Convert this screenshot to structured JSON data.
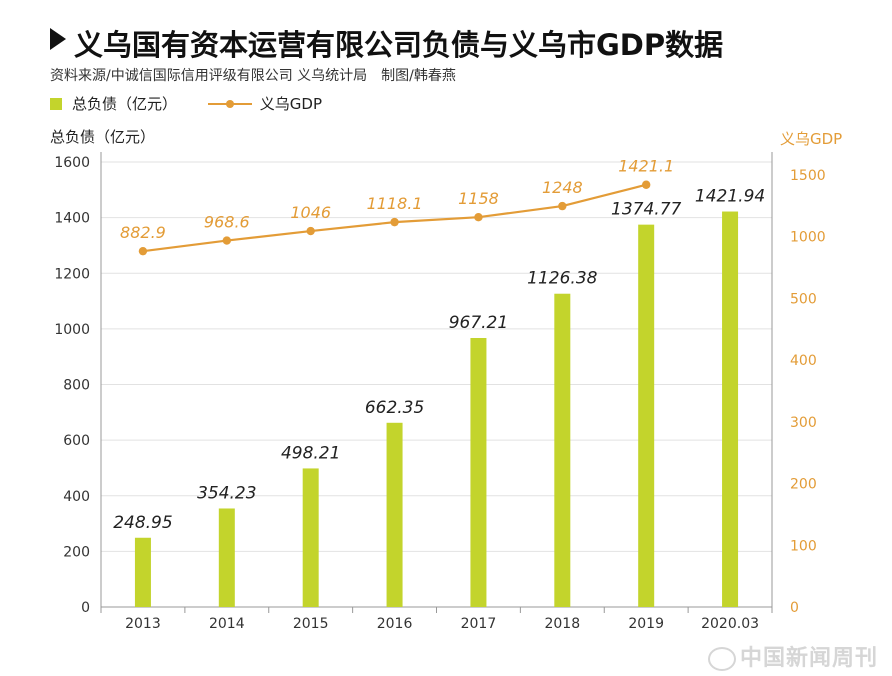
{
  "header": {
    "title": "义乌国有资本运营有限公司负债与义乌市GDP数据",
    "source": "资料来源/中诚信国际信用评级有限公司 义乌统计局　制图/韩春燕"
  },
  "legend": {
    "bar_label": "总负债（亿元）",
    "line_label": "义乌GDP"
  },
  "watermark": "中国新闻周刊",
  "colors": {
    "bar": "#c3d42c",
    "line": "#e39c37",
    "axis": "#999999",
    "grid": "#e2e2e2"
  },
  "chart_data": {
    "type": "bar+line",
    "title": "义乌国有资本运营有限公司负债与义乌市GDP数据",
    "categories": [
      "2013",
      "2014",
      "2015",
      "2016",
      "2017",
      "2018",
      "2019",
      "2020.03"
    ],
    "y_left": {
      "label": "总负债（亿元）",
      "range": [
        0,
        1600
      ],
      "ticks": [
        0,
        200,
        400,
        600,
        800,
        1000,
        1200,
        1400,
        1600
      ]
    },
    "y_right": {
      "label": "义乌GDP",
      "range": [
        0,
        1500
      ],
      "ticks": [
        0,
        100,
        200,
        300,
        400,
        500,
        1000,
        1500
      ]
    },
    "series": [
      {
        "name": "总负债（亿元）",
        "type": "bar",
        "axis": "left",
        "values": [
          248.95,
          354.23,
          498.21,
          662.35,
          967.21,
          1126.38,
          1374.77,
          1421.94
        ],
        "labels": [
          "248.95",
          "354.23",
          "498.21",
          "662.35",
          "967.21",
          "1126.38",
          "1374.77",
          "1421.94"
        ]
      },
      {
        "name": "义乌GDP",
        "type": "line",
        "axis": "right",
        "values": [
          882.9,
          968.6,
          1046,
          1118.1,
          1158,
          1248,
          1421.1,
          null
        ],
        "labels": [
          "882.9",
          "968.6",
          "1046",
          "1118.1",
          "1158",
          "1248",
          "1421.1",
          ""
        ]
      }
    ],
    "grid": true,
    "legend_position": "top-left"
  }
}
